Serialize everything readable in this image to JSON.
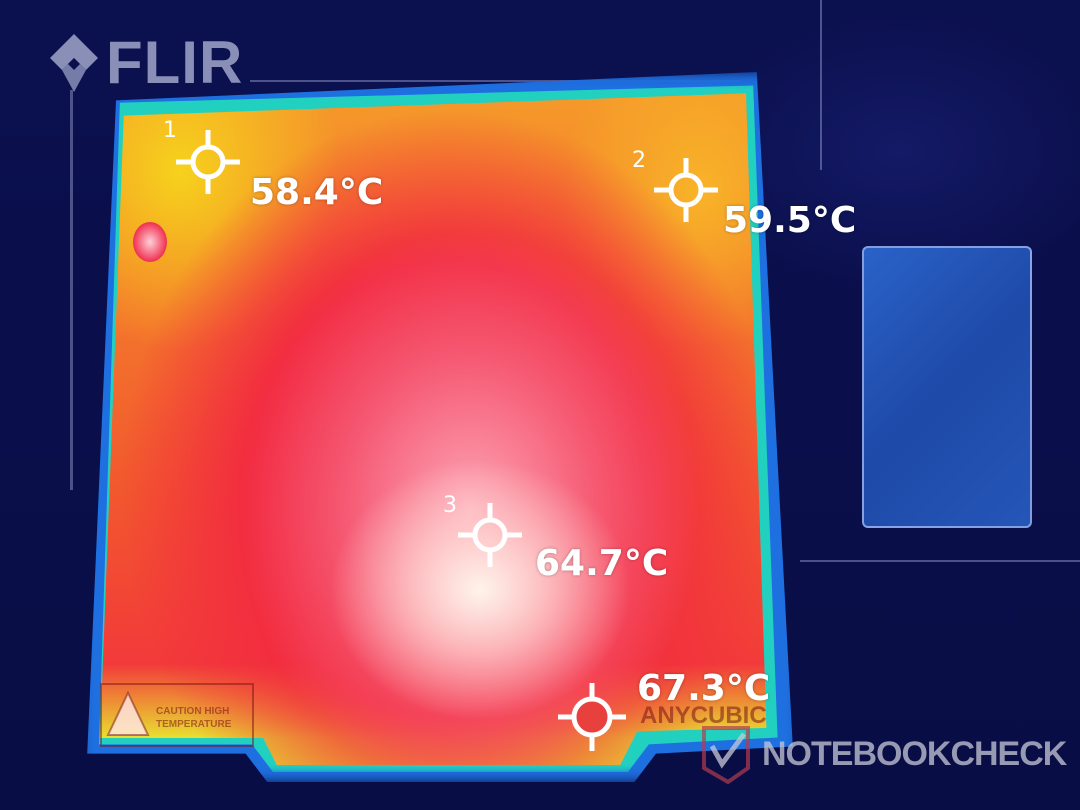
{
  "brand": {
    "logo_text": "FLIR",
    "icon": "flir-diamond-logo"
  },
  "measurements": [
    {
      "id": "1",
      "label": "1",
      "temperature": "58.4°C",
      "type": "spot"
    },
    {
      "id": "2",
      "label": "2",
      "temperature": "59.5°C",
      "type": "spot"
    },
    {
      "id": "3",
      "label": "3",
      "temperature": "64.7°C",
      "type": "spot"
    },
    {
      "id": "max",
      "label": "",
      "temperature": "67.3°C",
      "type": "hot-spot",
      "color": "#e8403c"
    }
  ],
  "bed_markings": {
    "caution": "CAUTION HIGH TEMPERATURE",
    "brand": "ANYCUBIC"
  },
  "watermark": {
    "text": "NOTEBOOKCHECK"
  },
  "palette": {
    "background": "#0a0f4e",
    "cool": "#1e6fe0",
    "warm": "#f5c21c",
    "hot": "#f01e4a",
    "hottest": "#fff6ee"
  }
}
